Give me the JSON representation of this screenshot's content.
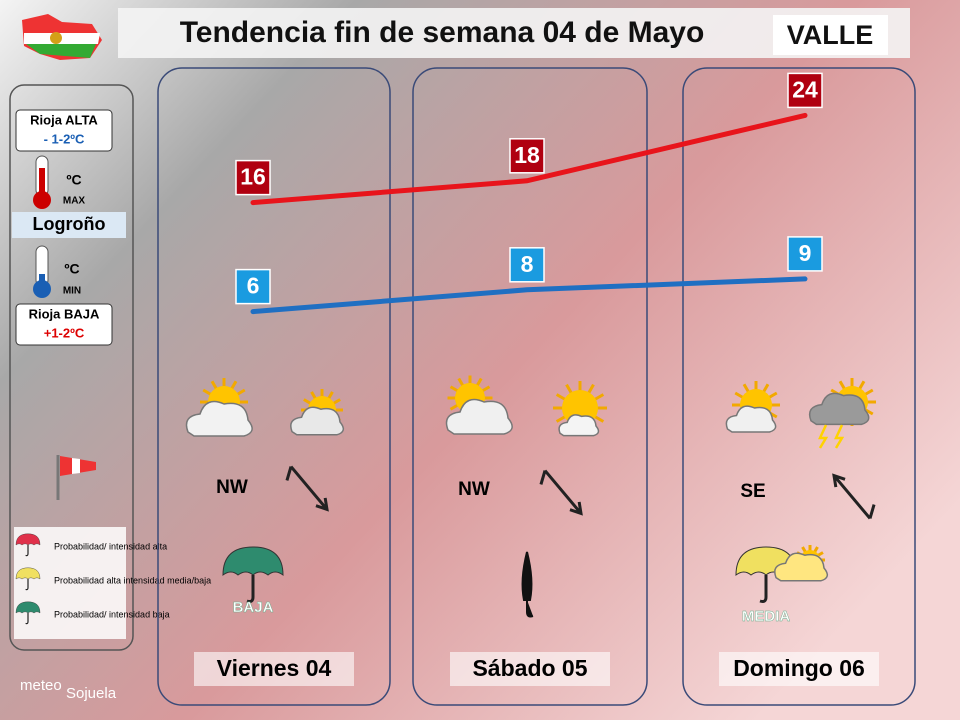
{
  "header": {
    "title": "Tendencia fin de semana 04 de Mayo",
    "zone": "VALLE"
  },
  "sidebar": {
    "high": {
      "label": "Rioja ALTA",
      "value": "- 1-2ºC"
    },
    "max_unit": "ºC",
    "max_tag": "MAX",
    "city": "Logroño",
    "min_unit": "ºC",
    "min_tag": "MIN",
    "low": {
      "label": "Rioja BAJA",
      "value": "+1-2ºC"
    },
    "legend": [
      "Probabilidad/ intensidad alta",
      "Probabilidad alta intensidad media/baja",
      "Probabilidad/ intensidad baja"
    ]
  },
  "logo": [
    "meteo",
    "Sojuela"
  ],
  "days": [
    {
      "name": "Viernes 04",
      "max": 16,
      "min": 6,
      "wind": "NW",
      "rain": "BAJA"
    },
    {
      "name": "Sábado 05",
      "max": 18,
      "min": 8,
      "wind": "NW"
    },
    {
      "name": "Domingo 06",
      "max": 24,
      "min": 9,
      "wind": "SE",
      "rain": "MEDIA"
    }
  ]
}
